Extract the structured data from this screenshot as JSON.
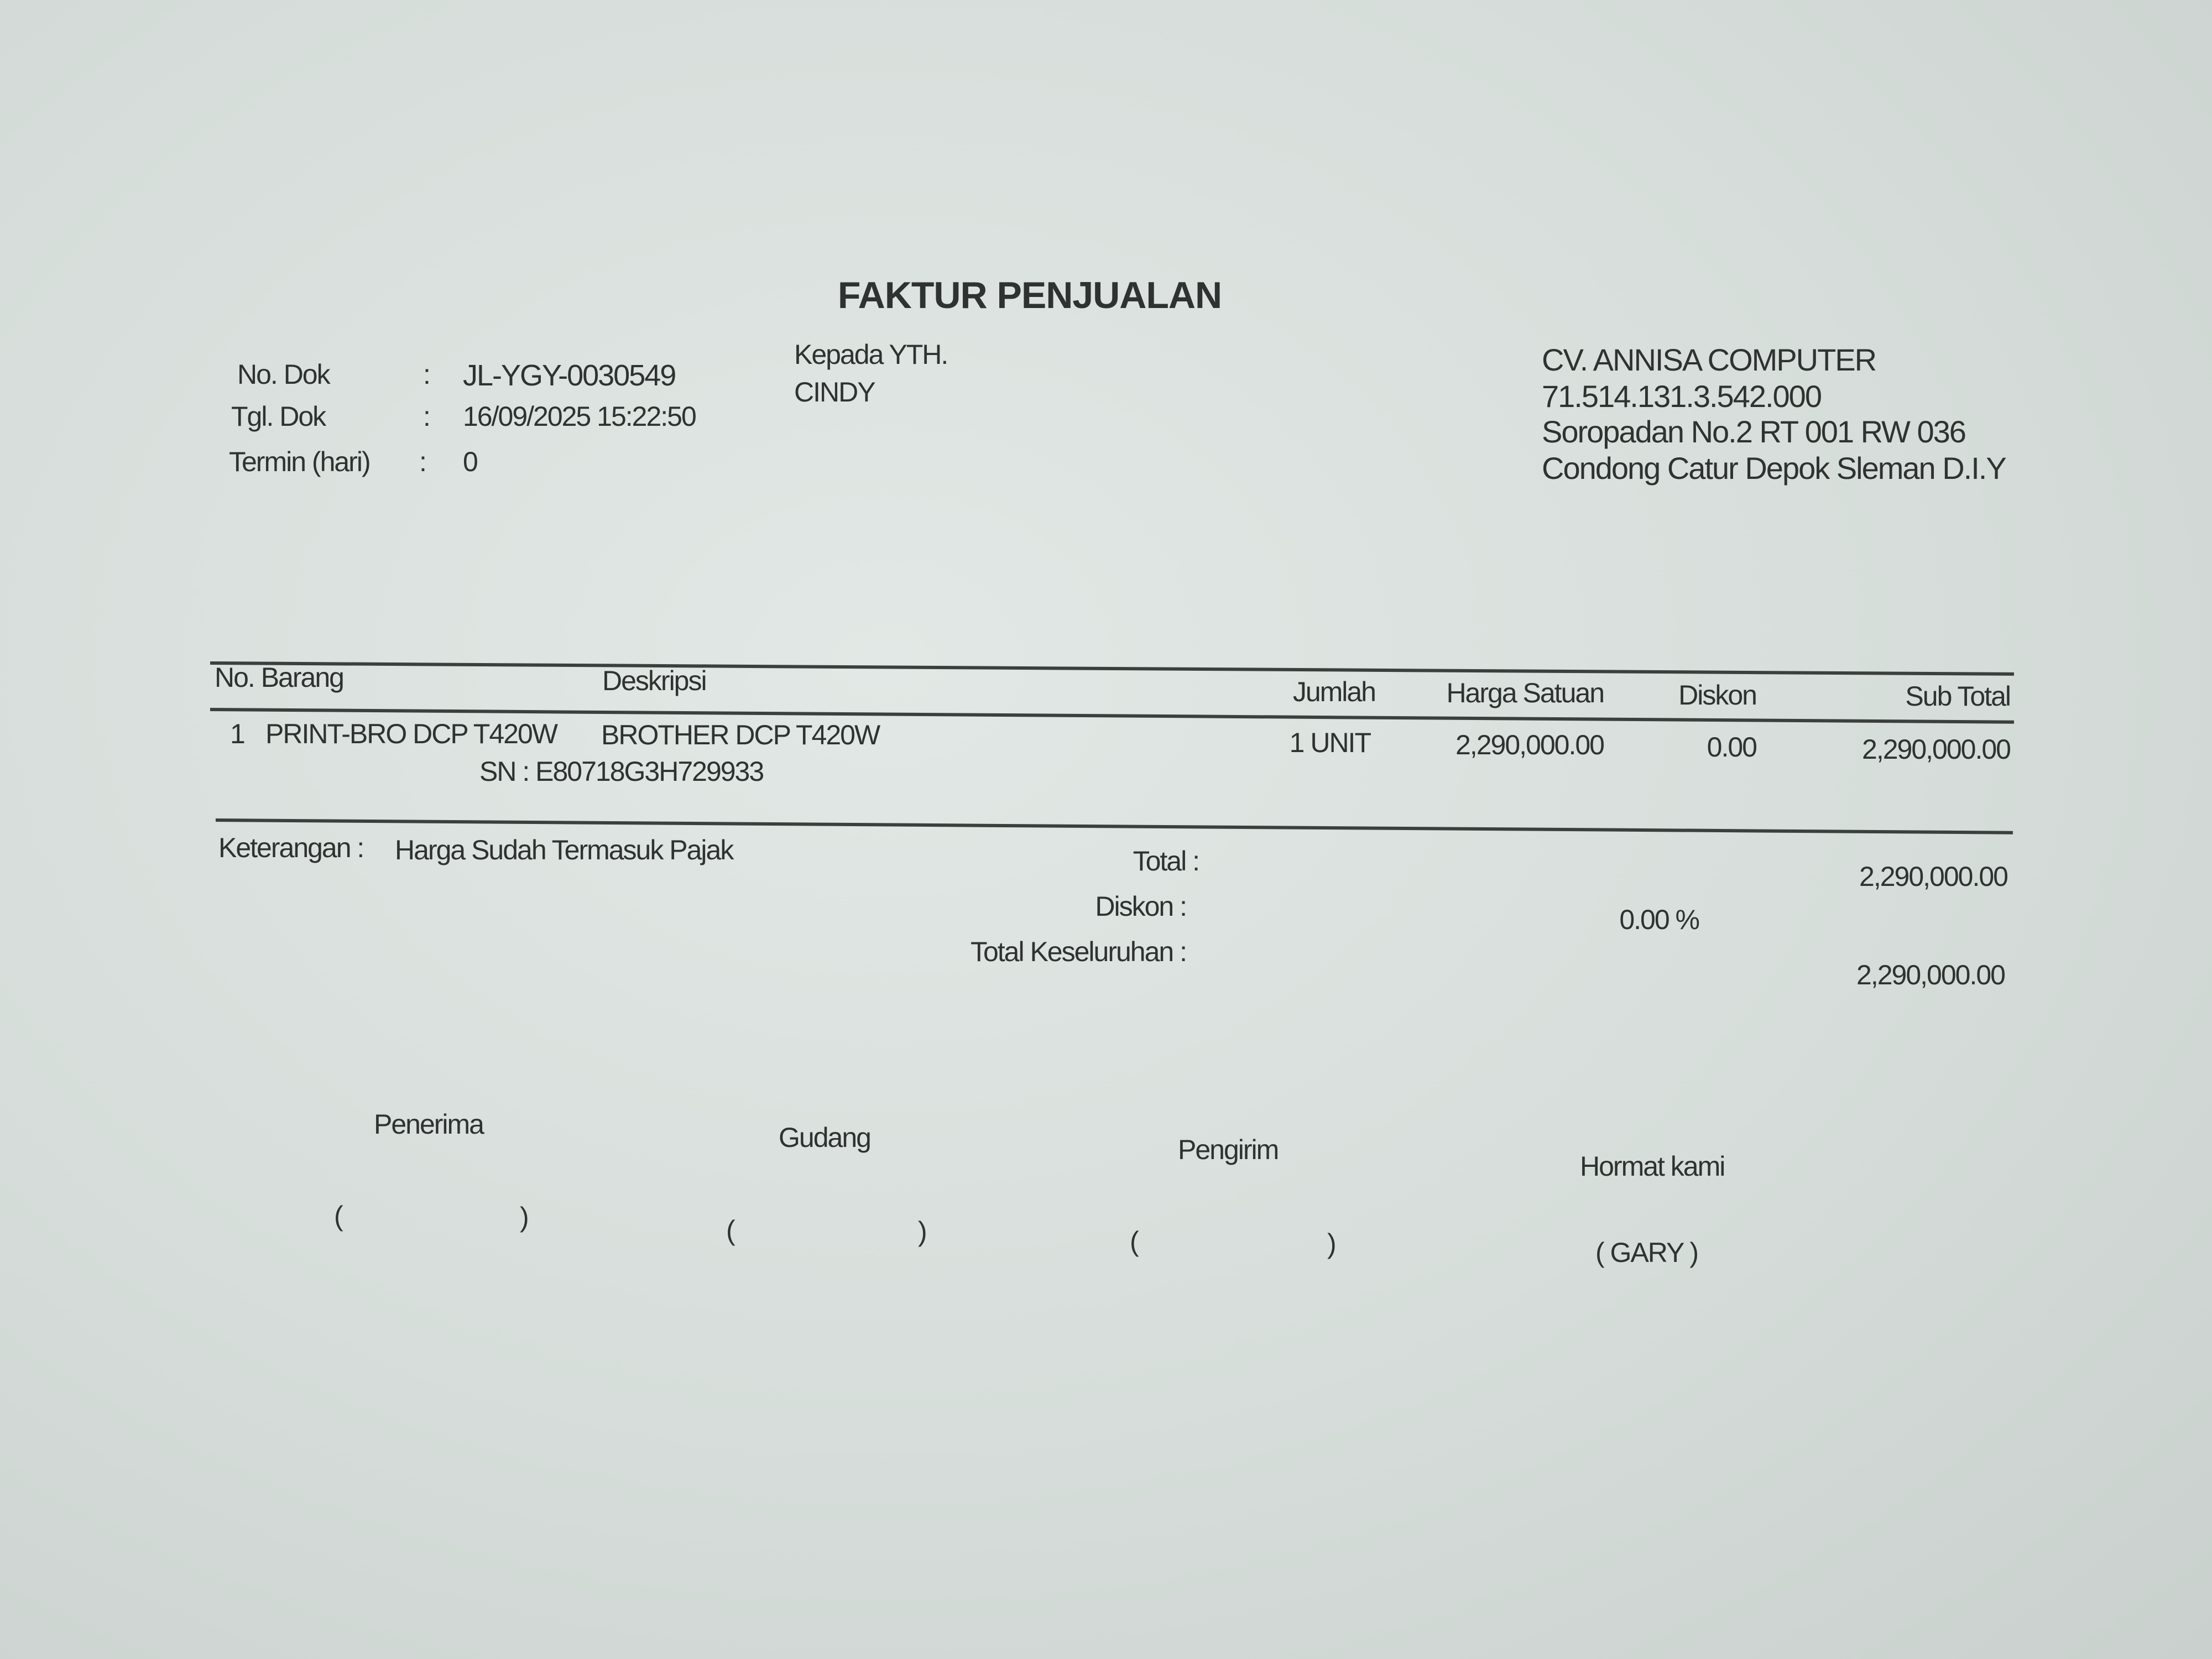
{
  "title": "FAKTUR PENJUALAN",
  "doc_info": {
    "no_dok_label": "No. Dok",
    "no_dok_value": "JL-YGY-0030549",
    "tgl_dok_label": "Tgl. Dok",
    "tgl_dok_value": "16/09/2025 15:22:50",
    "termin_label": "Termin (hari)",
    "termin_value": "0",
    "colon": ":"
  },
  "recipient": {
    "label": "Kepada YTH.",
    "name": "CINDY"
  },
  "company": {
    "name": "CV. ANNISA COMPUTER",
    "npwp": "71.514.131.3.542.000",
    "address_1": "Soropadan No.2  RT 001 RW 036",
    "address_2": "Condong Catur Depok Sleman D.I.Y"
  },
  "table": {
    "headers": [
      "No. Barang",
      "Deskripsi",
      "Jumlah",
      "Harga Satuan",
      "Diskon",
      "Sub Total"
    ],
    "rows": [
      {
        "no": "1",
        "kode": "PRINT-BRO DCP T420W",
        "deskripsi": "BROTHER DCP T420W",
        "sn": "SN  : E80718G3H729933",
        "jumlah": "1 UNIT",
        "harga": "2,290,000.00",
        "diskon": "0.00",
        "subtotal": "2,290,000.00"
      }
    ]
  },
  "summary": {
    "keterangan_label": "Keterangan :",
    "keterangan_value": "Harga Sudah Termasuk Pajak",
    "total_label": "Total :",
    "total_value": "2,290,000.00",
    "diskon_label": "Diskon :",
    "diskon_value": "0.00  %",
    "grand_label": "Total Keseluruhan :",
    "grand_value": "2,290,000.00"
  },
  "signatures": {
    "penerima": "Penerima",
    "gudang": "Gudang",
    "pengirim": "Pengirim",
    "hormat": "Hormat kami",
    "open": "(",
    "close": ")",
    "signer": "( GARY )"
  }
}
